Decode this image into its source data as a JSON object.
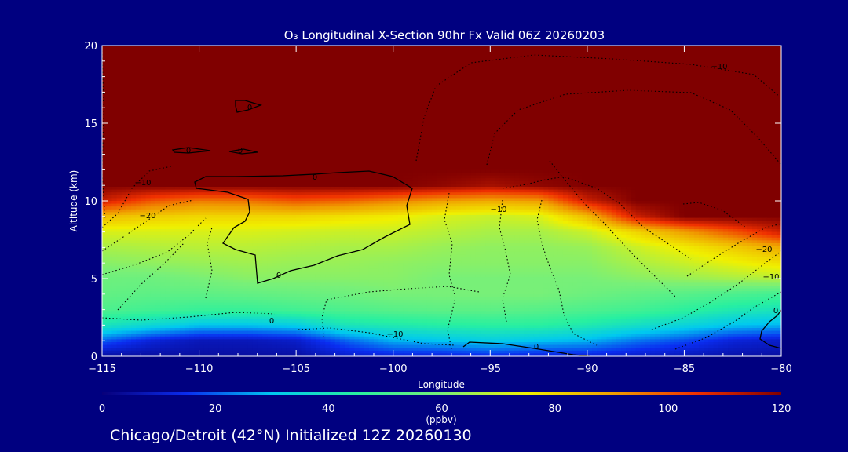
{
  "chart_data": {
    "type": "heatmap",
    "title": "O₃ Longitudinal X-Section 90hr  Fx Valid 06Z 20260203",
    "xlabel": "Longitude",
    "ylabel": "Altitude (km)",
    "xlim": [
      -115,
      -80
    ],
    "ylim": [
      0,
      20
    ],
    "x_ticks": [
      -115,
      -110,
      -105,
      -100,
      -95,
      -90,
      -85,
      -80
    ],
    "x_tick_labels": [
      "−115",
      "−110",
      "−105",
      "−100",
      "−95",
      "−90",
      "−85",
      "−80"
    ],
    "y_ticks": [
      0,
      5,
      10,
      15,
      20
    ],
    "y_tick_labels": [
      "0",
      "5",
      "10",
      "15",
      "20"
    ],
    "colorbar": {
      "min": 0,
      "max": 120,
      "ticks": [
        0,
        20,
        40,
        60,
        80,
        100,
        120
      ],
      "tick_labels": [
        "0",
        "20",
        "40",
        "60",
        "80",
        "100",
        "120"
      ],
      "units": "(ppbv)",
      "colors": [
        "#08007a",
        "#0a2df0",
        "#00c8f0",
        "#28f0a0",
        "#78f078",
        "#f0f000",
        "#f0a000",
        "#f03000",
        "#800000"
      ]
    },
    "ozone_mixing_ratio_ppbv": {
      "longitudes": [
        -115,
        -112.5,
        -110,
        -107.5,
        -105,
        -102.5,
        -100,
        -97.5,
        -95,
        -92.5,
        -90,
        -87.5,
        -85,
        -82.5,
        -80
      ],
      "altitudes_km": [
        0,
        1,
        2,
        3,
        4,
        5,
        6,
        7,
        8,
        9,
        10,
        11,
        12,
        20
      ],
      "values": [
        [
          5,
          5,
          5,
          5,
          5,
          10,
          12,
          12,
          14,
          12,
          12,
          10,
          8,
          6,
          5
        ],
        [
          20,
          12,
          8,
          8,
          10,
          20,
          28,
          30,
          32,
          30,
          28,
          22,
          18,
          12,
          10
        ],
        [
          40,
          35,
          30,
          30,
          32,
          40,
          42,
          44,
          45,
          45,
          42,
          38,
          34,
          30,
          28
        ],
        [
          52,
          50,
          48,
          48,
          50,
          52,
          54,
          55,
          55,
          54,
          52,
          50,
          46,
          42,
          40
        ],
        [
          56,
          55,
          55,
          56,
          57,
          58,
          60,
          60,
          60,
          60,
          58,
          56,
          54,
          52,
          50
        ],
        [
          58,
          58,
          60,
          62,
          62,
          62,
          62,
          60,
          60,
          60,
          60,
          62,
          64,
          66,
          68
        ],
        [
          62,
          63,
          64,
          65,
          64,
          64,
          63,
          62,
          62,
          62,
          62,
          66,
          70,
          74,
          78
        ],
        [
          66,
          67,
          68,
          68,
          67,
          66,
          66,
          64,
          63,
          63,
          64,
          70,
          76,
          82,
          88
        ],
        [
          72,
          72,
          72,
          72,
          71,
          70,
          70,
          68,
          66,
          66,
          70,
          80,
          90,
          100,
          110
        ],
        [
          85,
          82,
          80,
          80,
          80,
          78,
          76,
          72,
          70,
          72,
          85,
          110,
          120,
          120,
          120
        ],
        [
          110,
          100,
          95,
          96,
          100,
          98,
          94,
          90,
          88,
          90,
          110,
          120,
          120,
          120,
          120
        ],
        [
          120,
          120,
          120,
          120,
          120,
          120,
          120,
          118,
          115,
          118,
          120,
          120,
          120,
          120,
          120
        ],
        [
          120,
          120,
          120,
          120,
          120,
          120,
          120,
          120,
          120,
          120,
          120,
          120,
          120,
          120,
          120
        ],
        [
          120,
          120,
          120,
          120,
          120,
          120,
          120,
          120,
          120,
          120,
          120,
          120,
          120,
          120,
          120
        ]
      ]
    },
    "contour_labels": [
      "0",
      "0",
      "0",
      "0",
      "0",
      "0",
      "0",
      "0",
      "−10",
      "−10",
      "−10",
      "−10",
      "−10",
      "−20",
      "−20"
    ],
    "footer": "Chicago/Detroit (42°N) Initialized 12Z 20260130"
  }
}
